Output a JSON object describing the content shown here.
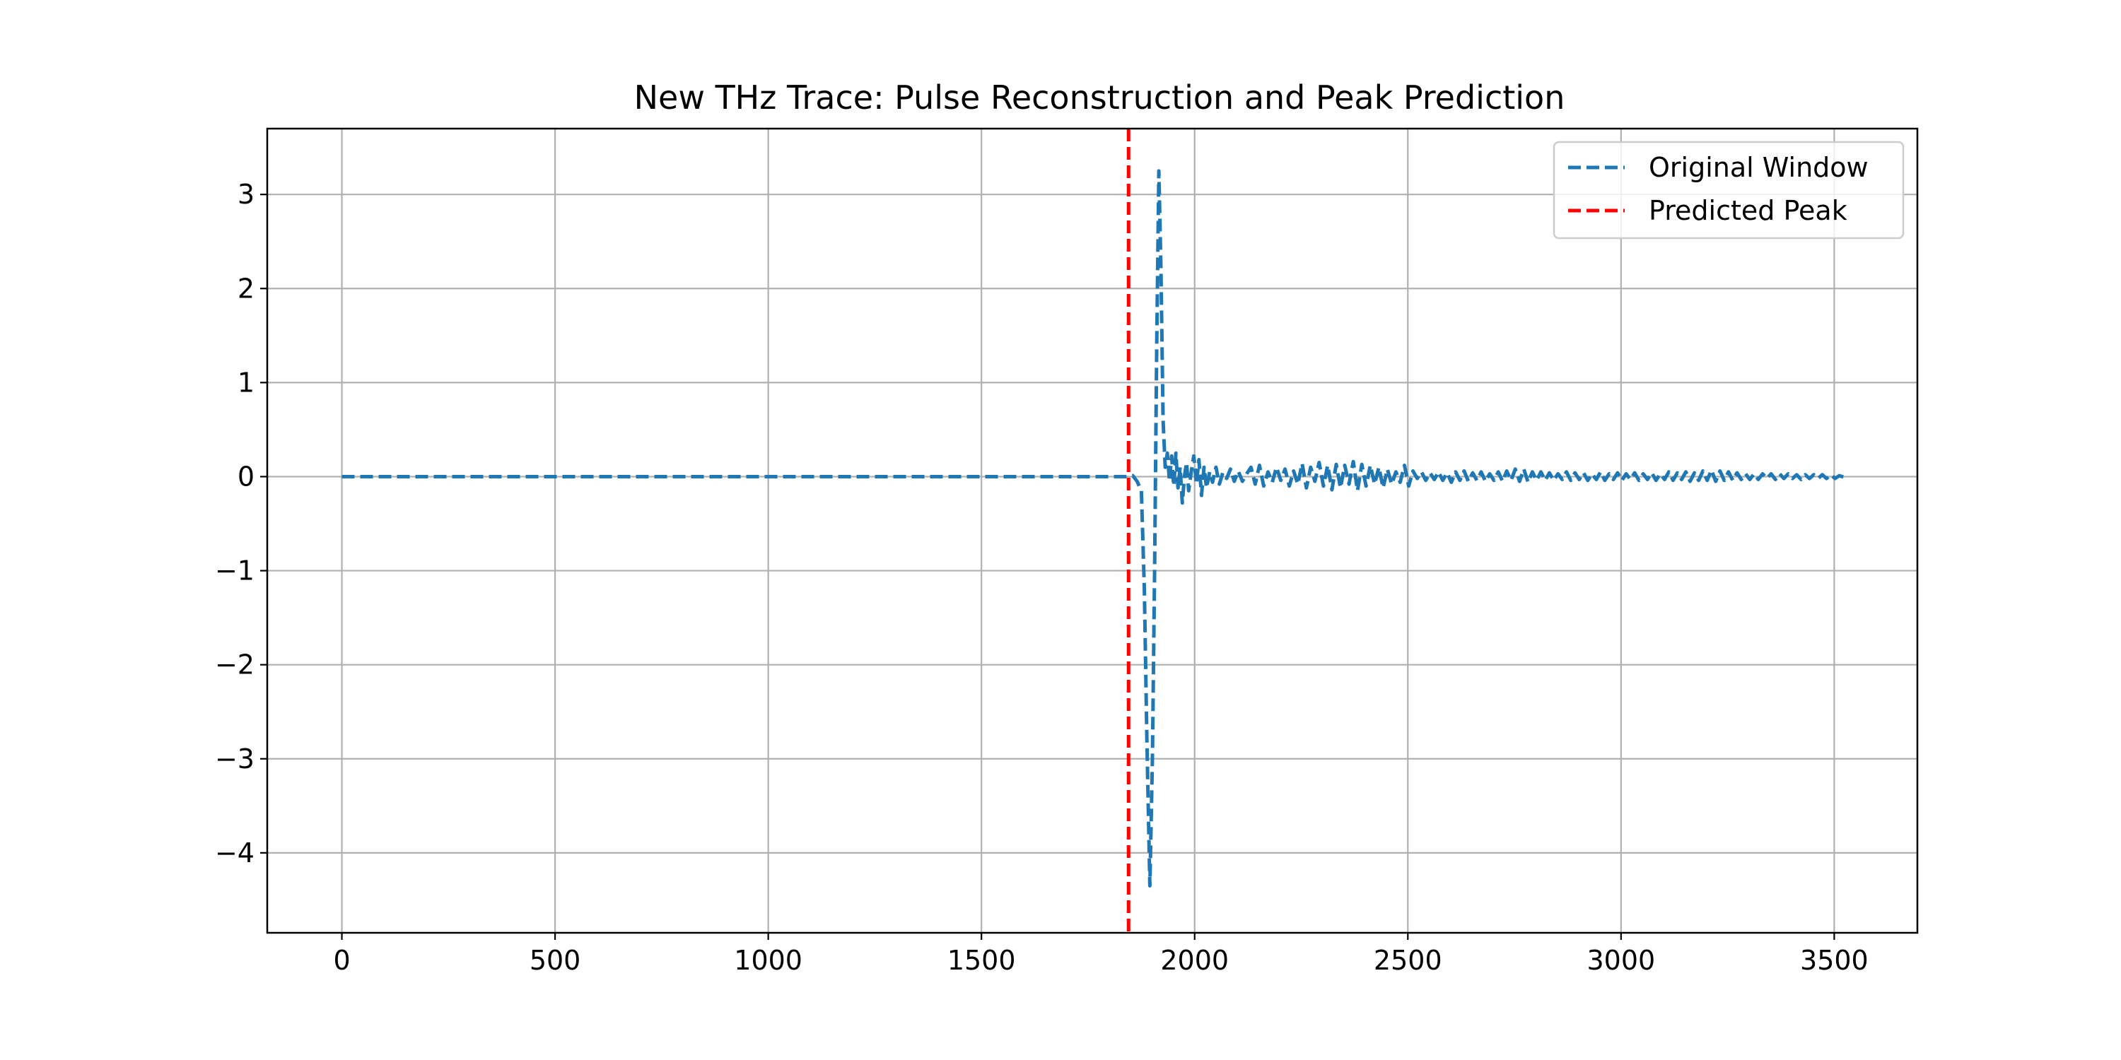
{
  "chart_data": {
    "type": "line",
    "title": "New THz Trace: Pulse Reconstruction and Peak Prediction",
    "xlabel": "",
    "ylabel": "",
    "xlim": [
      -175,
      3695
    ],
    "ylim": [
      -4.85,
      3.7
    ],
    "x_ticks": [
      0,
      500,
      1000,
      1500,
      2000,
      2500,
      3000,
      3500
    ],
    "x_tick_labels": [
      "0",
      "500",
      "1000",
      "1500",
      "2000",
      "2500",
      "3000",
      "3500"
    ],
    "y_ticks": [
      3,
      2,
      1,
      0,
      -1,
      -2,
      -3,
      -4
    ],
    "y_tick_labels": [
      "3",
      "2",
      "1",
      "0",
      "−1",
      "−2",
      "−3",
      "−4"
    ],
    "grid": true,
    "legend": {
      "placement": "top-right",
      "entries": [
        "Original Window",
        "Predicted Peak"
      ]
    },
    "series": [
      {
        "name": "Original Window",
        "color": "#1f77b4",
        "style": "dashed",
        "points": [
          [
            0,
            0
          ],
          [
            1840,
            0
          ],
          [
            1855,
            0.01
          ],
          [
            1865,
            -0.05
          ],
          [
            1875,
            -0.15
          ],
          [
            1882,
            -1.2
          ],
          [
            1888,
            -2.8
          ],
          [
            1895,
            -4.35
          ],
          [
            1901,
            -3.0
          ],
          [
            1906,
            -1.0
          ],
          [
            1911,
            1.4
          ],
          [
            1916,
            3.25
          ],
          [
            1921,
            2.2
          ],
          [
            1926,
            0.6
          ],
          [
            1931,
            0.1
          ],
          [
            1936,
            0.25
          ],
          [
            1941,
            -0.05
          ],
          [
            1946,
            0.22
          ],
          [
            1951,
            -0.1
          ],
          [
            1956,
            0.25
          ],
          [
            1961,
            -0.12
          ],
          [
            1966,
            0.1
          ],
          [
            1971,
            -0.28
          ],
          [
            1976,
            0.0
          ],
          [
            1981,
            0.15
          ],
          [
            1986,
            -0.15
          ],
          [
            1992,
            0.05
          ],
          [
            1998,
            0.22
          ],
          [
            2004,
            -0.08
          ],
          [
            2010,
            0.18
          ],
          [
            2016,
            -0.2
          ],
          [
            2022,
            0.1
          ],
          [
            2028,
            -0.12
          ],
          [
            2035,
            0.05
          ],
          [
            2042,
            -0.06
          ],
          [
            2050,
            0.1
          ],
          [
            2058,
            -0.08
          ],
          [
            2066,
            0.04
          ],
          [
            2075,
            -0.02
          ],
          [
            2084,
            0.08
          ],
          [
            2093,
            -0.05
          ],
          [
            2102,
            0.06
          ],
          [
            2112,
            -0.05
          ],
          [
            2122,
            0.03
          ],
          [
            2132,
            0.1
          ],
          [
            2142,
            -0.08
          ],
          [
            2152,
            0.12
          ],
          [
            2162,
            -0.1
          ],
          [
            2172,
            0.05
          ],
          [
            2182,
            -0.06
          ],
          [
            2192,
            0.1
          ],
          [
            2202,
            -0.04
          ],
          [
            2212,
            0.08
          ],
          [
            2222,
            -0.1
          ],
          [
            2232,
            0.06
          ],
          [
            2242,
            -0.08
          ],
          [
            2252,
            0.14
          ],
          [
            2262,
            -0.12
          ],
          [
            2272,
            0.1
          ],
          [
            2282,
            -0.05
          ],
          [
            2292,
            0.15
          ],
          [
            2302,
            -0.1
          ],
          [
            2312,
            0.12
          ],
          [
            2322,
            -0.14
          ],
          [
            2332,
            0.13
          ],
          [
            2342,
            -0.12
          ],
          [
            2352,
            0.12
          ],
          [
            2362,
            -0.08
          ],
          [
            2372,
            0.16
          ],
          [
            2382,
            -0.15
          ],
          [
            2392,
            0.13
          ],
          [
            2402,
            -0.1
          ],
          [
            2412,
            0.12
          ],
          [
            2422,
            -0.08
          ],
          [
            2432,
            0.1
          ],
          [
            2442,
            -0.12
          ],
          [
            2452,
            0.08
          ],
          [
            2462,
            -0.08
          ],
          [
            2472,
            0.05
          ],
          [
            2482,
            -0.06
          ],
          [
            2492,
            0.12
          ],
          [
            2502,
            -0.1
          ],
          [
            2512,
            0.06
          ],
          [
            2522,
            -0.02
          ],
          [
            2532,
            0.05
          ],
          [
            2542,
            -0.04
          ],
          [
            2552,
            0.04
          ],
          [
            2562,
            -0.03
          ],
          [
            2572,
            0.05
          ],
          [
            2582,
            -0.04
          ],
          [
            2592,
            0.04
          ],
          [
            2602,
            -0.06
          ],
          [
            2612,
            0.05
          ],
          [
            2622,
            -0.04
          ],
          [
            2632,
            0.06
          ],
          [
            2642,
            -0.05
          ],
          [
            2652,
            0.04
          ],
          [
            2662,
            -0.04
          ],
          [
            2672,
            0.05
          ],
          [
            2682,
            -0.05
          ],
          [
            2692,
            0.03
          ],
          [
            2702,
            -0.04
          ],
          [
            2712,
            0.05
          ],
          [
            2722,
            -0.05
          ],
          [
            2732,
            0.06
          ],
          [
            2742,
            -0.04
          ],
          [
            2752,
            0.08
          ],
          [
            2762,
            -0.05
          ],
          [
            2772,
            0.08
          ],
          [
            2782,
            -0.06
          ],
          [
            2792,
            0.05
          ],
          [
            2802,
            -0.04
          ],
          [
            2812,
            0.05
          ],
          [
            2822,
            -0.04
          ],
          [
            2832,
            0.04
          ],
          [
            2842,
            -0.04
          ],
          [
            2852,
            0.03
          ],
          [
            2862,
            -0.03
          ],
          [
            2872,
            0.05
          ],
          [
            2882,
            -0.04
          ],
          [
            2892,
            0.04
          ],
          [
            2902,
            -0.03
          ],
          [
            2912,
            0.04
          ],
          [
            2922,
            -0.04
          ],
          [
            2932,
            0.03
          ],
          [
            2942,
            -0.03
          ],
          [
            2952,
            0.05
          ],
          [
            2962,
            -0.04
          ],
          [
            2972,
            0.03
          ],
          [
            2982,
            -0.03
          ],
          [
            2992,
            0.04
          ],
          [
            3002,
            -0.04
          ],
          [
            3012,
            0.03
          ],
          [
            3022,
            -0.03
          ],
          [
            3032,
            0.04
          ],
          [
            3042,
            -0.04
          ],
          [
            3052,
            0.03
          ],
          [
            3062,
            -0.03
          ],
          [
            3072,
            0.04
          ],
          [
            3082,
            -0.04
          ],
          [
            3092,
            0.03
          ],
          [
            3102,
            -0.03
          ],
          [
            3112,
            0.05
          ],
          [
            3122,
            -0.04
          ],
          [
            3132,
            0.04
          ],
          [
            3142,
            -0.03
          ],
          [
            3152,
            0.05
          ],
          [
            3162,
            -0.05
          ],
          [
            3172,
            0.04
          ],
          [
            3182,
            -0.04
          ],
          [
            3192,
            0.06
          ],
          [
            3202,
            -0.04
          ],
          [
            3212,
            0.07
          ],
          [
            3222,
            -0.05
          ],
          [
            3232,
            0.06
          ],
          [
            3242,
            -0.04
          ],
          [
            3252,
            0.05
          ],
          [
            3262,
            -0.04
          ],
          [
            3272,
            0.04
          ],
          [
            3282,
            -0.03
          ],
          [
            3292,
            0.03
          ],
          [
            3302,
            -0.03
          ],
          [
            3312,
            0.03
          ],
          [
            3322,
            -0.03
          ],
          [
            3332,
            0.03
          ],
          [
            3342,
            -0.02
          ],
          [
            3352,
            0.03
          ],
          [
            3362,
            -0.03
          ],
          [
            3372,
            0.03
          ],
          [
            3382,
            -0.02
          ],
          [
            3392,
            0.03
          ],
          [
            3402,
            -0.02
          ],
          [
            3412,
            0.02
          ],
          [
            3422,
            -0.03
          ],
          [
            3432,
            0.02
          ],
          [
            3442,
            -0.02
          ],
          [
            3452,
            0.02
          ],
          [
            3462,
            -0.02
          ],
          [
            3472,
            0.02
          ],
          [
            3482,
            -0.02
          ],
          [
            3492,
            0.02
          ],
          [
            3502,
            -0.02
          ],
          [
            3512,
            0.01
          ],
          [
            3525,
            -0.01
          ]
        ]
      },
      {
        "name": "Predicted Peak",
        "color": "#ff0000",
        "style": "dashed",
        "type": "vline",
        "x": 1845
      }
    ]
  }
}
